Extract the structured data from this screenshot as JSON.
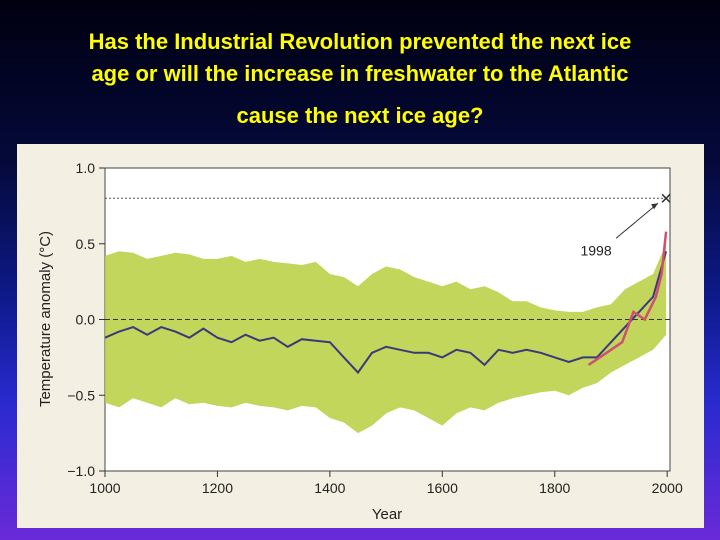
{
  "slide": {
    "title_line1": "Has the Industrial Revolution prevented the next ice",
    "title_line2": "age or will the increase in freshwater to the Atlantic",
    "title_line3": "cause the next ice age?",
    "title_color": "#ffff00"
  },
  "chart_data": {
    "type": "line",
    "xlabel": "Year",
    "ylabel": "Temperature anomaly (°C)",
    "xlim": [
      1000,
      2005
    ],
    "ylim": [
      -1.0,
      1.0
    ],
    "x_ticks": [
      "1000",
      "1200",
      "1400",
      "1600",
      "1800",
      "2000"
    ],
    "y_ticks": [
      "1.0",
      "0.5",
      "0.0",
      "−0.5",
      "−1.0"
    ],
    "annotation": {
      "label": "1998",
      "x": 1998,
      "y": 0.8
    },
    "reference_line_y": 0.8,
    "zero_line_y": 0.0,
    "colors": {
      "uncertainty_band": "#b6cf3e",
      "reconstruction": "#3a3a7a",
      "smoothed": "#7a2a2a",
      "instrumental": "#d05070"
    },
    "series": [
      {
        "x": [
          1000,
          1025,
          1050,
          1075,
          1100,
          1125,
          1150,
          1175,
          1200,
          1225,
          1250,
          1275,
          1300,
          1325,
          1350,
          1375,
          1400,
          1425,
          1450,
          1475,
          1500,
          1525,
          1550,
          1575,
          1600,
          1625,
          1650,
          1675,
          1700,
          1725,
          1750,
          1775,
          1800,
          1825,
          1850,
          1875,
          1900,
          1925,
          1950,
          1975,
          1998
        ],
        "lower": [
          -0.55,
          -0.58,
          -0.52,
          -0.55,
          -0.58,
          -0.52,
          -0.56,
          -0.55,
          -0.57,
          -0.58,
          -0.55,
          -0.57,
          -0.58,
          -0.6,
          -0.57,
          -0.58,
          -0.65,
          -0.68,
          -0.75,
          -0.7,
          -0.62,
          -0.58,
          -0.6,
          -0.65,
          -0.7,
          -0.62,
          -0.58,
          -0.6,
          -0.55,
          -0.52,
          -0.5,
          -0.48,
          -0.47,
          -0.5,
          -0.45,
          -0.42,
          -0.35,
          -0.3,
          -0.25,
          -0.2,
          -0.1
        ],
        "upper": [
          0.42,
          0.45,
          0.44,
          0.4,
          0.42,
          0.44,
          0.43,
          0.4,
          0.4,
          0.42,
          0.38,
          0.4,
          0.38,
          0.37,
          0.36,
          0.38,
          0.3,
          0.28,
          0.22,
          0.3,
          0.35,
          0.33,
          0.28,
          0.25,
          0.22,
          0.25,
          0.2,
          0.22,
          0.18,
          0.12,
          0.12,
          0.08,
          0.06,
          0.05,
          0.05,
          0.08,
          0.1,
          0.2,
          0.25,
          0.3,
          0.5
        ]
      },
      {
        "x": [
          1000,
          1025,
          1050,
          1075,
          1100,
          1125,
          1150,
          1175,
          1200,
          1225,
          1250,
          1275,
          1300,
          1325,
          1350,
          1375,
          1400,
          1425,
          1450,
          1475,
          1500,
          1525,
          1550,
          1575,
          1600,
          1625,
          1650,
          1675,
          1700,
          1725,
          1750,
          1775,
          1800,
          1825,
          1850,
          1875,
          1900,
          1925,
          1950,
          1975,
          1998
        ],
        "y": [
          -0.12,
          -0.08,
          -0.05,
          -0.1,
          -0.05,
          -0.08,
          -0.12,
          -0.06,
          -0.12,
          -0.15,
          -0.1,
          -0.14,
          -0.12,
          -0.18,
          -0.13,
          -0.14,
          -0.15,
          -0.25,
          -0.35,
          -0.22,
          -0.18,
          -0.2,
          -0.22,
          -0.22,
          -0.25,
          -0.2,
          -0.22,
          -0.3,
          -0.2,
          -0.22,
          -0.2,
          -0.22,
          -0.25,
          -0.28,
          -0.25,
          -0.25,
          -0.15,
          -0.05,
          0.05,
          0.15,
          0.45
        ]
      },
      {
        "x": [
          1860,
          1880,
          1900,
          1920,
          1940,
          1960,
          1980,
          1990,
          1998
        ],
        "y": [
          -0.3,
          -0.25,
          -0.2,
          -0.15,
          0.05,
          0.0,
          0.15,
          0.3,
          0.58
        ]
      }
    ]
  }
}
